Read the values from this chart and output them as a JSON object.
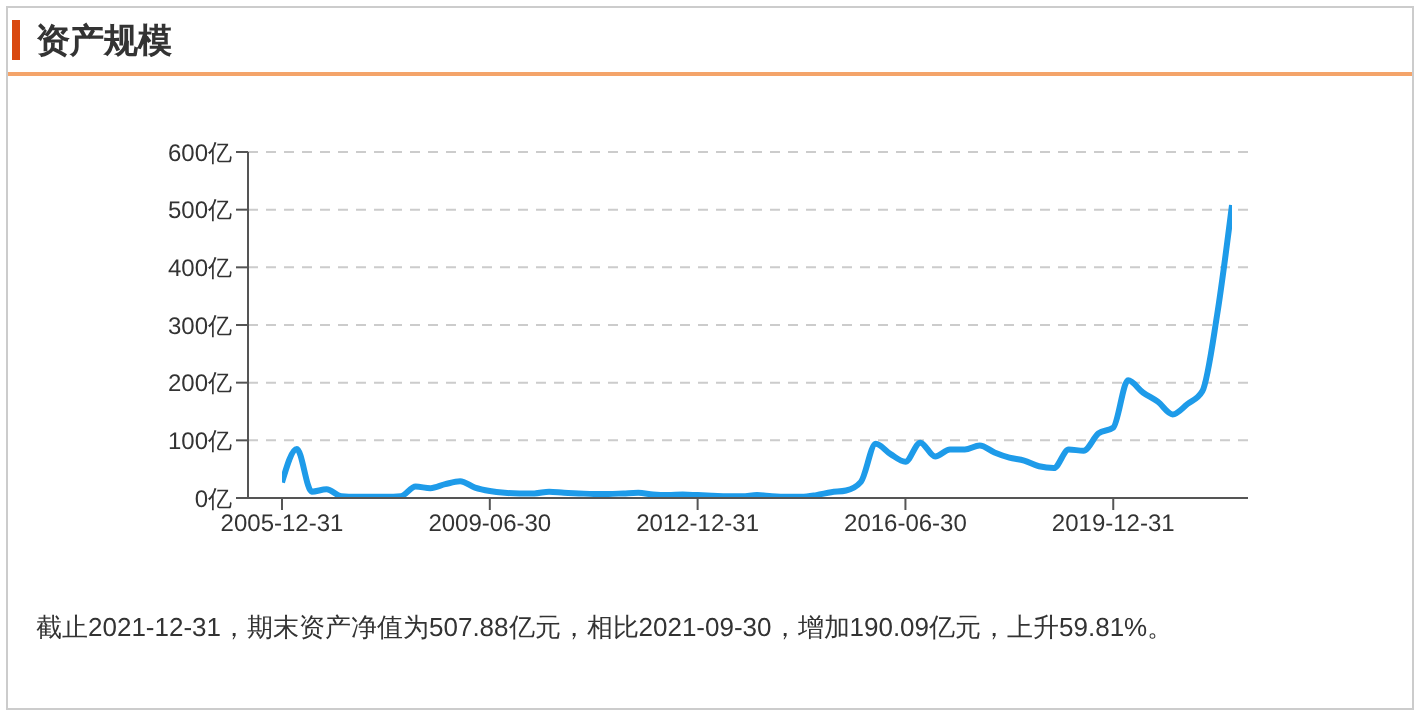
{
  "chart_data": {
    "type": "line",
    "title": "资产规模",
    "categories": [
      "2005-12-31",
      null,
      null,
      null,
      null,
      null,
      null,
      null,
      null,
      null,
      null,
      null,
      null,
      null,
      "2009-06-30",
      null,
      null,
      null,
      null,
      null,
      null,
      null,
      null,
      null,
      null,
      null,
      null,
      null,
      "2012-12-31",
      null,
      null,
      null,
      null,
      null,
      null,
      null,
      null,
      null,
      null,
      null,
      null,
      null,
      "2016-06-30",
      null,
      null,
      null,
      null,
      null,
      null,
      null,
      null,
      null,
      null,
      null,
      null,
      null,
      "2019-12-31",
      null,
      null,
      null,
      null,
      null,
      null,
      null,
      null
    ],
    "series": [
      {
        "color": "#1e9be9",
        "values": [
          27,
          85,
          11,
          15,
          3,
          2,
          2,
          2,
          3,
          20,
          17,
          24,
          29,
          18,
          12,
          9,
          8,
          8,
          11,
          9,
          8,
          7,
          7,
          8,
          9,
          6,
          5,
          6,
          5,
          4,
          3,
          3,
          5,
          3,
          2,
          2,
          5,
          10,
          13,
          28,
          94,
          76,
          63,
          96,
          72,
          84,
          84,
          91,
          79,
          70,
          65,
          55,
          52,
          84,
          82,
          112,
          122,
          204,
          183,
          167,
          145,
          163,
          185,
          318,
          508
        ]
      }
    ],
    "ylim": [
      0,
      600
    ],
    "yticks": [
      {
        "value": 0,
        "label": "0亿"
      },
      {
        "value": 100,
        "label": "100亿"
      },
      {
        "value": 200,
        "label": "200亿"
      },
      {
        "value": 300,
        "label": "300亿"
      },
      {
        "value": 400,
        "label": "400亿"
      },
      {
        "value": 500,
        "label": "500亿"
      },
      {
        "value": 600,
        "label": "600亿"
      }
    ],
    "grid": "y",
    "marker": "none",
    "line_style": "solid",
    "legend": false,
    "annotations": [
      "截止2021-12-31，期末资产净值为507.88亿元，相比2021-09-30，增加190.09亿元，上升59.81%。"
    ]
  }
}
